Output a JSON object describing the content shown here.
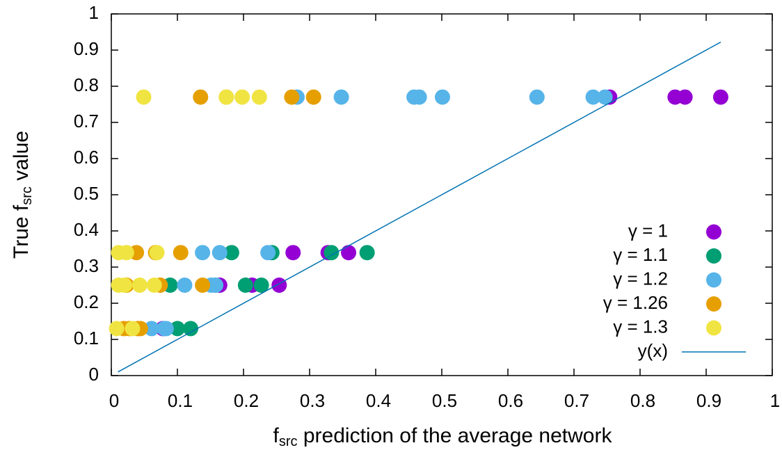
{
  "chart_data": {
    "type": "scatter",
    "xlabel": [
      "f",
      "src",
      " prediction of the average network"
    ],
    "ylabel": [
      "True f",
      "src",
      " value"
    ],
    "xlim": [
      0,
      1
    ],
    "ylim": [
      0,
      1
    ],
    "xticks": [
      0,
      0.1,
      0.2,
      0.3,
      0.4,
      0.5,
      0.6,
      0.7,
      0.8,
      0.9,
      1
    ],
    "yticks": [
      0,
      0.1,
      0.2,
      0.3,
      0.4,
      0.5,
      0.6,
      0.7,
      0.8,
      0.9,
      1
    ],
    "legend": "lower right",
    "series": [
      {
        "name": "γ = 1",
        "color": "#9400d3",
        "mark": "point",
        "x": [
          0.754,
          0.853,
          0.868,
          0.922,
          0.275,
          0.328,
          0.359,
          0.164,
          0.213,
          0.254,
          0.078
        ],
        "values": [
          0.77,
          0.77,
          0.77,
          0.77,
          0.34,
          0.34,
          0.34,
          0.25,
          0.25,
          0.25,
          0.13
        ]
      },
      {
        "name": "γ = 1.1",
        "color": "#009e73",
        "mark": "point",
        "x": [
          0.182,
          0.243,
          0.333,
          0.387,
          0.089,
          0.157,
          0.203,
          0.227,
          0.1,
          0.12
        ],
        "values": [
          0.34,
          0.34,
          0.34,
          0.34,
          0.25,
          0.25,
          0.25,
          0.25,
          0.13,
          0.13
        ]
      },
      {
        "name": "γ = 1.2",
        "color": "#56b4e9",
        "mark": "point",
        "x": [
          0.281,
          0.348,
          0.458,
          0.466,
          0.501,
          0.644,
          0.729,
          0.747,
          0.138,
          0.164,
          0.237,
          0.111,
          0.151,
          0.158,
          0.061,
          0.08,
          0.083
        ],
        "values": [
          0.77,
          0.77,
          0.77,
          0.77,
          0.77,
          0.77,
          0.77,
          0.77,
          0.34,
          0.34,
          0.34,
          0.25,
          0.25,
          0.25,
          0.13,
          0.13,
          0.13
        ]
      },
      {
        "name": "γ = 1.26",
        "color": "#e69f00",
        "mark": "point",
        "x": [
          0.135,
          0.174,
          0.273,
          0.306,
          0.038,
          0.067,
          0.105,
          0.023,
          0.074,
          0.138,
          0.019,
          0.027,
          0.04,
          0.044
        ],
        "values": [
          0.77,
          0.77,
          0.77,
          0.77,
          0.34,
          0.34,
          0.34,
          0.25,
          0.25,
          0.25,
          0.13,
          0.13,
          0.13,
          0.13
        ]
      },
      {
        "name": "γ = 1.3",
        "color": "#f0e442",
        "mark": "point",
        "x": [
          0.049,
          0.174,
          0.198,
          0.224,
          0.011,
          0.023,
          0.069,
          0.011,
          0.02,
          0.043,
          0.065,
          0.008,
          0.032
        ],
        "values": [
          0.77,
          0.77,
          0.77,
          0.77,
          0.34,
          0.34,
          0.34,
          0.25,
          0.25,
          0.25,
          0.25,
          0.13,
          0.13
        ]
      },
      {
        "name": "y(x)",
        "color": "#0072b2",
        "mark": "line",
        "x": [
          0.01,
          0.922
        ],
        "values": [
          0.01,
          0.922
        ]
      }
    ]
  }
}
